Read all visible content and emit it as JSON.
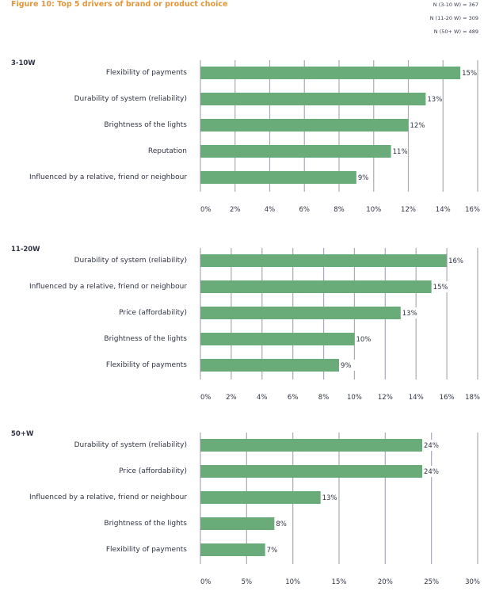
{
  "title": "Figure 10: Top 5 drivers of brand or product choice",
  "sample_notes": [
    "N (3-10 W) = 367",
    "N (11-20 W) = 309",
    "N (50+ W) = 489"
  ],
  "colors": {
    "bar": "#6aab7a",
    "grid": "#a9abb5",
    "title": "#e0963a",
    "text": "#2f3342"
  },
  "chart_data": [
    {
      "type": "bar",
      "orientation": "horizontal",
      "title": "3-10W",
      "categories": [
        "Flexibility of payments",
        "Durability of system (reliability)",
        "Brightness of the lights",
        "Reputation",
        "Influenced by a relative, friend or neighbour"
      ],
      "values": [
        15,
        13,
        12,
        11,
        9
      ],
      "value_labels": [
        "15%",
        "13%",
        "12%",
        "11%",
        "9%"
      ],
      "xlim": [
        0,
        16
      ],
      "ticks": [
        0,
        2,
        4,
        6,
        8,
        10,
        12,
        14,
        16
      ],
      "tick_labels": [
        "0%",
        "2%",
        "4%",
        "6%",
        "8%",
        "10%",
        "12%",
        "14%",
        "16%"
      ],
      "grid": true,
      "xlabel": "",
      "ylabel": ""
    },
    {
      "type": "bar",
      "orientation": "horizontal",
      "title": "11-20W",
      "categories": [
        "Durability of system (reliability)",
        "Influenced by a relative, friend or neighbour",
        "Price (affordability)",
        "Brightness of the lights",
        "Flexibility of payments"
      ],
      "values": [
        16,
        15,
        13,
        10,
        9
      ],
      "value_labels": [
        "16%",
        "15%",
        "13%",
        "10%",
        "9%"
      ],
      "xlim": [
        0,
        18
      ],
      "ticks": [
        0,
        2,
        4,
        6,
        8,
        10,
        12,
        14,
        16,
        18
      ],
      "tick_labels": [
        "0%",
        "2%",
        "4%",
        "6%",
        "8%",
        "10%",
        "12%",
        "14%",
        "16%",
        "18%"
      ],
      "grid": true,
      "xlabel": "",
      "ylabel": ""
    },
    {
      "type": "bar",
      "orientation": "horizontal",
      "title": "50+W",
      "categories": [
        "Durability of system (reliability)",
        "Price (affordability)",
        "Influenced by a relative, friend or neighbour",
        "Brightness of the lights",
        "Flexibility of payments"
      ],
      "values": [
        24,
        24,
        13,
        8,
        7
      ],
      "value_labels": [
        "24%",
        "24%",
        "13%",
        "8%",
        "7%"
      ],
      "xlim": [
        0,
        30
      ],
      "ticks": [
        0,
        5,
        10,
        15,
        20,
        25,
        30
      ],
      "tick_labels": [
        "0%",
        "5%",
        "10%",
        "15%",
        "20%",
        "25%",
        "30%"
      ],
      "grid": true,
      "xlabel": "",
      "ylabel": ""
    }
  ]
}
